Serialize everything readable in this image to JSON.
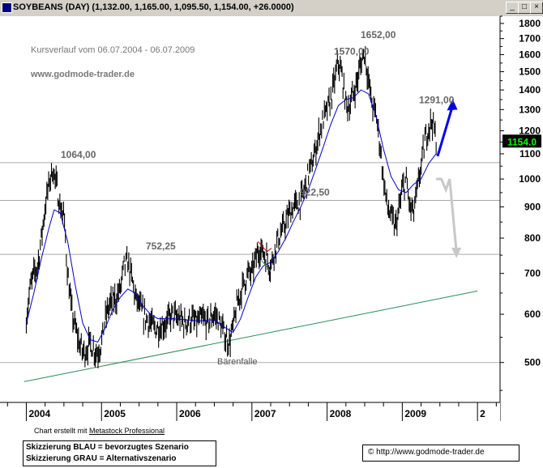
{
  "window": {
    "title": "SOYBEANS (DAY)",
    "ohlc": "(1,132.00, 1,165.00, 1,095.50, 1,154.00, +26.0000)",
    "buttons": [
      "_",
      "□",
      "×"
    ]
  },
  "annotations": {
    "line1": "Kursverlauf vom 06.07.2004 - 06.07.2009",
    "line2": "www.godmode-trader.de",
    "baerenfalle": "Bärenfalle"
  },
  "footer": {
    "credit_prefix": "Chart erstellt mit ",
    "credit_link": "Metastock Professional",
    "legend_blue": "Skizzierung BLAU = bevorzugtes Szenario",
    "legend_gray": "Skizzierung GRAU = Alternativszenario",
    "url": "© http://www.godmode-trader.de"
  },
  "chart_data": {
    "type": "candlestick",
    "scale": "log",
    "ylim": [
      430,
      1850
    ],
    "y_ticks": [
      500,
      600,
      700,
      800,
      900,
      1000,
      1100,
      1200,
      1300,
      1400,
      1500,
      1600,
      1700,
      1800
    ],
    "x_ticks": [
      "2004",
      "2005",
      "2006",
      "2007",
      "2008",
      "2009",
      "2"
    ],
    "last_price": "1154.0",
    "colors": {
      "price": "#000000",
      "moving_average": "#0000cc",
      "trendline": "#2e8b57",
      "horizontal_lines": "#aaaaaa",
      "last_price_bg": "#000000",
      "last_price_fg": "#00ff00",
      "blue_scenario": "#0000ee",
      "gray_scenario": "#c8c8c8",
      "red_marker": "#cc0000"
    },
    "price_labels": [
      {
        "text": "1064,00",
        "value": 1064
      },
      {
        "text": "752,25",
        "value": 752.25
      },
      {
        "text": "922,50",
        "value": 922.5
      },
      {
        "text": "1570,00",
        "value": 1570
      },
      {
        "text": "1652,00",
        "value": 1652
      },
      {
        "text": "1291,00",
        "value": 1291
      }
    ],
    "horizontal_levels": [
      1064,
      922.5,
      752.25,
      500
    ],
    "price_series": [
      {
        "t": 2004.0,
        "v": 590
      },
      {
        "t": 2004.05,
        "v": 660
      },
      {
        "t": 2004.1,
        "v": 700
      },
      {
        "t": 2004.15,
        "v": 720
      },
      {
        "t": 2004.2,
        "v": 800
      },
      {
        "t": 2004.25,
        "v": 900
      },
      {
        "t": 2004.3,
        "v": 980
      },
      {
        "t": 2004.35,
        "v": 1040
      },
      {
        "t": 2004.4,
        "v": 980
      },
      {
        "t": 2004.45,
        "v": 900
      },
      {
        "t": 2004.5,
        "v": 870
      },
      {
        "t": 2004.55,
        "v": 700
      },
      {
        "t": 2004.6,
        "v": 610
      },
      {
        "t": 2004.65,
        "v": 570
      },
      {
        "t": 2004.7,
        "v": 540
      },
      {
        "t": 2004.75,
        "v": 520
      },
      {
        "t": 2004.8,
        "v": 525
      },
      {
        "t": 2004.85,
        "v": 540
      },
      {
        "t": 2004.9,
        "v": 525
      },
      {
        "t": 2004.95,
        "v": 520
      },
      {
        "t": 2005.0,
        "v": 540
      },
      {
        "t": 2005.05,
        "v": 590
      },
      {
        "t": 2005.1,
        "v": 620
      },
      {
        "t": 2005.15,
        "v": 630
      },
      {
        "t": 2005.2,
        "v": 640
      },
      {
        "t": 2005.25,
        "v": 660
      },
      {
        "t": 2005.3,
        "v": 720
      },
      {
        "t": 2005.35,
        "v": 730
      },
      {
        "t": 2005.4,
        "v": 690
      },
      {
        "t": 2005.45,
        "v": 640
      },
      {
        "t": 2005.5,
        "v": 620
      },
      {
        "t": 2005.55,
        "v": 600
      },
      {
        "t": 2005.6,
        "v": 590
      },
      {
        "t": 2005.65,
        "v": 580
      },
      {
        "t": 2005.7,
        "v": 570
      },
      {
        "t": 2005.75,
        "v": 570
      },
      {
        "t": 2005.8,
        "v": 575
      },
      {
        "t": 2005.85,
        "v": 580
      },
      {
        "t": 2005.9,
        "v": 590
      },
      {
        "t": 2005.95,
        "v": 600
      },
      {
        "t": 2006.0,
        "v": 590
      },
      {
        "t": 2006.05,
        "v": 590
      },
      {
        "t": 2006.1,
        "v": 580
      },
      {
        "t": 2006.15,
        "v": 585
      },
      {
        "t": 2006.2,
        "v": 590
      },
      {
        "t": 2006.25,
        "v": 580
      },
      {
        "t": 2006.3,
        "v": 585
      },
      {
        "t": 2006.35,
        "v": 590
      },
      {
        "t": 2006.4,
        "v": 580
      },
      {
        "t": 2006.45,
        "v": 590
      },
      {
        "t": 2006.5,
        "v": 600
      },
      {
        "t": 2006.55,
        "v": 590
      },
      {
        "t": 2006.6,
        "v": 570
      },
      {
        "t": 2006.65,
        "v": 550
      },
      {
        "t": 2006.7,
        "v": 540
      },
      {
        "t": 2006.75,
        "v": 570
      },
      {
        "t": 2006.8,
        "v": 620
      },
      {
        "t": 2006.85,
        "v": 650
      },
      {
        "t": 2006.9,
        "v": 680
      },
      {
        "t": 2006.95,
        "v": 700
      },
      {
        "t": 2007.0,
        "v": 700
      },
      {
        "t": 2007.05,
        "v": 740
      },
      {
        "t": 2007.1,
        "v": 770
      },
      {
        "t": 2007.15,
        "v": 760
      },
      {
        "t": 2007.2,
        "v": 740
      },
      {
        "t": 2007.25,
        "v": 720
      },
      {
        "t": 2007.3,
        "v": 760
      },
      {
        "t": 2007.35,
        "v": 800
      },
      {
        "t": 2007.4,
        "v": 820
      },
      {
        "t": 2007.45,
        "v": 850
      },
      {
        "t": 2007.5,
        "v": 880
      },
      {
        "t": 2007.55,
        "v": 900
      },
      {
        "t": 2007.6,
        "v": 910
      },
      {
        "t": 2007.65,
        "v": 920
      },
      {
        "t": 2007.7,
        "v": 960
      },
      {
        "t": 2007.75,
        "v": 1020
      },
      {
        "t": 2007.8,
        "v": 1060
      },
      {
        "t": 2007.85,
        "v": 1120
      },
      {
        "t": 2007.9,
        "v": 1200
      },
      {
        "t": 2007.95,
        "v": 1250
      },
      {
        "t": 2008.0,
        "v": 1300
      },
      {
        "t": 2008.05,
        "v": 1350
      },
      {
        "t": 2008.1,
        "v": 1450
      },
      {
        "t": 2008.15,
        "v": 1560
      },
      {
        "t": 2008.2,
        "v": 1470
      },
      {
        "t": 2008.25,
        "v": 1330
      },
      {
        "t": 2008.3,
        "v": 1320
      },
      {
        "t": 2008.35,
        "v": 1380
      },
      {
        "t": 2008.4,
        "v": 1450
      },
      {
        "t": 2008.45,
        "v": 1550
      },
      {
        "t": 2008.5,
        "v": 1620
      },
      {
        "t": 2008.55,
        "v": 1450
      },
      {
        "t": 2008.6,
        "v": 1320
      },
      {
        "t": 2008.65,
        "v": 1280
      },
      {
        "t": 2008.7,
        "v": 1150
      },
      {
        "t": 2008.75,
        "v": 1000
      },
      {
        "t": 2008.8,
        "v": 900
      },
      {
        "t": 2008.85,
        "v": 870
      },
      {
        "t": 2008.9,
        "v": 830
      },
      {
        "t": 2008.95,
        "v": 880
      },
      {
        "t": 2009.0,
        "v": 960
      },
      {
        "t": 2009.05,
        "v": 1000
      },
      {
        "t": 2009.1,
        "v": 900
      },
      {
        "t": 2009.15,
        "v": 880
      },
      {
        "t": 2009.2,
        "v": 960
      },
      {
        "t": 2009.25,
        "v": 1050
      },
      {
        "t": 2009.3,
        "v": 1150
      },
      {
        "t": 2009.35,
        "v": 1220
      },
      {
        "t": 2009.4,
        "v": 1250
      },
      {
        "t": 2009.45,
        "v": 1154
      }
    ],
    "moving_average": [
      {
        "t": 2004.0,
        "v": 580
      },
      {
        "t": 2004.1,
        "v": 650
      },
      {
        "t": 2004.2,
        "v": 740
      },
      {
        "t": 2004.3,
        "v": 830
      },
      {
        "t": 2004.37,
        "v": 890
      },
      {
        "t": 2004.45,
        "v": 880
      },
      {
        "t": 2004.55,
        "v": 790
      },
      {
        "t": 2004.65,
        "v": 670
      },
      {
        "t": 2004.75,
        "v": 580
      },
      {
        "t": 2004.85,
        "v": 545
      },
      {
        "t": 2004.95,
        "v": 540
      },
      {
        "t": 2005.05,
        "v": 570
      },
      {
        "t": 2005.15,
        "v": 610
      },
      {
        "t": 2005.25,
        "v": 640
      },
      {
        "t": 2005.35,
        "v": 660
      },
      {
        "t": 2005.45,
        "v": 650
      },
      {
        "t": 2005.55,
        "v": 620
      },
      {
        "t": 2005.65,
        "v": 600
      },
      {
        "t": 2005.75,
        "v": 590
      },
      {
        "t": 2005.85,
        "v": 590
      },
      {
        "t": 2005.95,
        "v": 590
      },
      {
        "t": 2006.1,
        "v": 588
      },
      {
        "t": 2006.3,
        "v": 585
      },
      {
        "t": 2006.5,
        "v": 588
      },
      {
        "t": 2006.65,
        "v": 570
      },
      {
        "t": 2006.75,
        "v": 560
      },
      {
        "t": 2006.85,
        "v": 590
      },
      {
        "t": 2006.95,
        "v": 640
      },
      {
        "t": 2007.05,
        "v": 690
      },
      {
        "t": 2007.15,
        "v": 720
      },
      {
        "t": 2007.25,
        "v": 730
      },
      {
        "t": 2007.35,
        "v": 760
      },
      {
        "t": 2007.45,
        "v": 800
      },
      {
        "t": 2007.55,
        "v": 850
      },
      {
        "t": 2007.65,
        "v": 900
      },
      {
        "t": 2007.75,
        "v": 960
      },
      {
        "t": 2007.85,
        "v": 1040
      },
      {
        "t": 2007.95,
        "v": 1130
      },
      {
        "t": 2008.05,
        "v": 1230
      },
      {
        "t": 2008.15,
        "v": 1320
      },
      {
        "t": 2008.25,
        "v": 1350
      },
      {
        "t": 2008.35,
        "v": 1360
      },
      {
        "t": 2008.45,
        "v": 1400
      },
      {
        "t": 2008.55,
        "v": 1380
      },
      {
        "t": 2008.65,
        "v": 1270
      },
      {
        "t": 2008.75,
        "v": 1120
      },
      {
        "t": 2008.85,
        "v": 1010
      },
      {
        "t": 2008.95,
        "v": 960
      },
      {
        "t": 2009.05,
        "v": 950
      },
      {
        "t": 2009.15,
        "v": 980
      },
      {
        "t": 2009.25,
        "v": 1000
      },
      {
        "t": 2009.35,
        "v": 1060
      },
      {
        "t": 2009.45,
        "v": 1100
      }
    ],
    "trendline": [
      {
        "t": 2003.97,
        "v": 465
      },
      {
        "t": 2010.0,
        "v": 655
      }
    ],
    "blue_scenario": [
      {
        "t": 2009.47,
        "v": 1090
      },
      {
        "t": 2009.67,
        "v": 1320
      }
    ],
    "gray_scenario": [
      {
        "t": 2009.45,
        "v": 1000
      },
      {
        "t": 2009.52,
        "v": 1000
      },
      {
        "t": 2009.58,
        "v": 960
      },
      {
        "t": 2009.63,
        "v": 1000
      },
      {
        "t": 2009.72,
        "v": 760
      }
    ]
  }
}
